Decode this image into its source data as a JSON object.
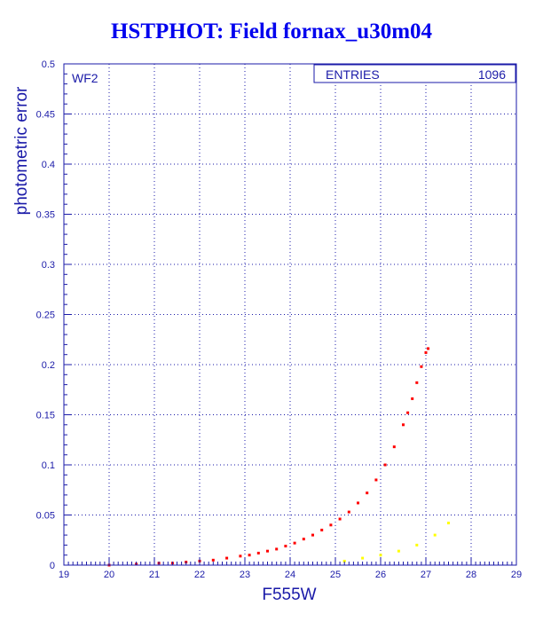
{
  "title": "HSTPHOT: Field fornax_u30m04",
  "chart_data": {
    "type": "scatter",
    "title": "HSTPHOT: Field fornax_u30m04",
    "xlabel": "F555W",
    "ylabel": "photometric error",
    "xlim": [
      19,
      29
    ],
    "ylim": [
      0,
      0.5
    ],
    "x_ticks": [
      "19",
      "20",
      "21",
      "22",
      "23",
      "24",
      "25",
      "26",
      "27",
      "28",
      "29"
    ],
    "y_ticks": [
      "0",
      "0.05",
      "0.1",
      "0.15",
      "0.2",
      "0.25",
      "0.3",
      "0.35",
      "0.4",
      "0.45",
      "0.5"
    ],
    "grid": true,
    "panel_label": "WF2",
    "stats_label": "ENTRIES",
    "stats_value": "1096",
    "series": [
      {
        "color": "#ff0000",
        "points": [
          [
            20.0,
            0.0
          ],
          [
            20.6,
            0.001
          ],
          [
            21.1,
            0.002
          ],
          [
            21.4,
            0.002
          ],
          [
            21.7,
            0.003
          ],
          [
            22.0,
            0.004
          ],
          [
            22.3,
            0.005
          ],
          [
            22.6,
            0.007
          ],
          [
            22.9,
            0.009
          ],
          [
            23.1,
            0.01
          ],
          [
            23.3,
            0.012
          ],
          [
            23.5,
            0.014
          ],
          [
            23.7,
            0.016
          ],
          [
            23.9,
            0.019
          ],
          [
            24.1,
            0.022
          ],
          [
            24.3,
            0.026
          ],
          [
            24.5,
            0.03
          ],
          [
            24.7,
            0.035
          ],
          [
            24.9,
            0.04
          ],
          [
            25.1,
            0.046
          ],
          [
            25.3,
            0.053
          ],
          [
            25.5,
            0.062
          ],
          [
            25.7,
            0.072
          ],
          [
            25.9,
            0.085
          ],
          [
            26.1,
            0.1
          ],
          [
            26.3,
            0.118
          ],
          [
            26.5,
            0.14
          ],
          [
            26.6,
            0.152
          ],
          [
            26.7,
            0.166
          ],
          [
            26.8,
            0.182
          ],
          [
            26.9,
            0.198
          ],
          [
            27.0,
            0.212
          ],
          [
            27.05,
            0.216
          ]
        ]
      },
      {
        "color": "#ffff00",
        "points": [
          [
            25.2,
            0.004
          ],
          [
            25.6,
            0.007
          ],
          [
            26.0,
            0.01
          ],
          [
            26.4,
            0.014
          ],
          [
            26.8,
            0.02
          ],
          [
            27.2,
            0.03
          ],
          [
            27.5,
            0.042
          ]
        ]
      }
    ]
  }
}
